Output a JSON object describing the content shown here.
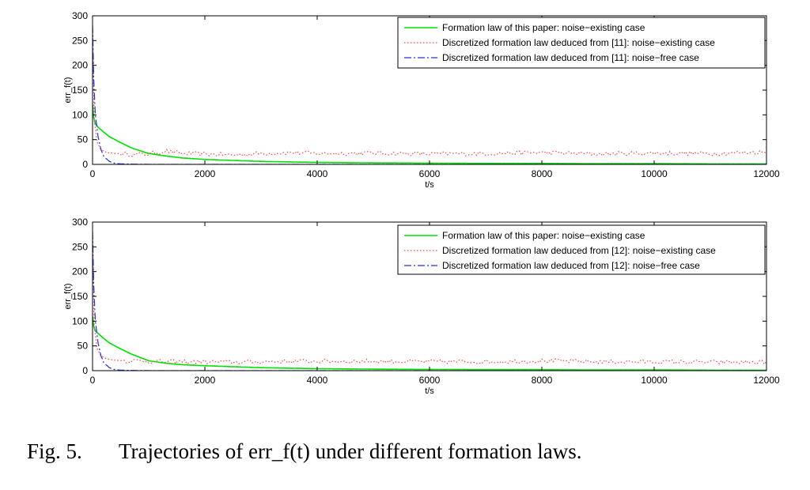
{
  "caption": {
    "number": "Fig. 5.",
    "text": "Trajectories of err_f(t) under different formation laws."
  },
  "colors": {
    "formation": "#00e000",
    "noise_existing": "#ff4040",
    "noise_free": "#2030e0"
  },
  "chart_data": [
    {
      "type": "line",
      "title": "",
      "xlabel": "t/s",
      "ylabel": "err_f(t)",
      "xlim": [
        0,
        12000
      ],
      "ylim": [
        0,
        300
      ],
      "xticks": [
        0,
        2000,
        4000,
        6000,
        8000,
        10000,
        12000
      ],
      "yticks": [
        0,
        50,
        100,
        150,
        200,
        250,
        300
      ],
      "legend_position": "top-right",
      "series": [
        {
          "name": "Formation law of this paper: noise−existing case",
          "style": "solid",
          "x": [
            0,
            20,
            50,
            100,
            200,
            300,
            500,
            700,
            1000,
            1300,
            1600,
            2000,
            2500,
            3000,
            3500,
            4000,
            5000,
            6000,
            7000,
            8000,
            9000,
            10000,
            11000,
            12000
          ],
          "y": [
            120,
            95,
            82,
            75,
            65,
            56,
            44,
            33,
            22,
            17,
            13,
            10,
            8,
            6,
            5,
            4,
            3,
            2.5,
            2,
            2,
            1.5,
            1.5,
            1,
            1
          ]
        },
        {
          "name": "Discretized formation law deduced from [11]: noise−existing case",
          "style": "dotted",
          "noisy": true,
          "x": [
            0,
            30,
            80,
            150,
            250,
            400,
            600,
            800,
            1000,
            1300,
            1600,
            2000,
            2500,
            3000,
            3500,
            4000,
            5000,
            6000,
            7000,
            8000,
            9000,
            10000,
            11000,
            12000
          ],
          "y": [
            280,
            90,
            45,
            30,
            24,
            22,
            21,
            20,
            21,
            27,
            22,
            21,
            19,
            22,
            24,
            22,
            23,
            21,
            22,
            24,
            21,
            23,
            22,
            25
          ]
        },
        {
          "name": "Discretized formation law deduced from [11]: noise−free case",
          "style": "dashdot",
          "x": [
            0,
            20,
            50,
            100,
            150,
            200,
            300,
            400,
            500,
            700,
            1000,
            2000,
            4000,
            6000,
            8000,
            10000,
            12000
          ],
          "y": [
            280,
            175,
            100,
            55,
            30,
            16,
            6,
            2,
            1,
            0.5,
            0,
            0,
            0,
            0,
            0,
            0,
            0
          ]
        }
      ]
    },
    {
      "type": "line",
      "title": "",
      "xlabel": "t/s",
      "ylabel": "err_f(t)",
      "xlim": [
        0,
        12000
      ],
      "ylim": [
        0,
        300
      ],
      "xticks": [
        0,
        2000,
        4000,
        6000,
        8000,
        10000,
        12000
      ],
      "yticks": [
        0,
        50,
        100,
        150,
        200,
        250,
        300
      ],
      "legend_position": "top-right",
      "series": [
        {
          "name": "Formation law of this paper: noise−existing case",
          "style": "solid",
          "x": [
            0,
            20,
            50,
            100,
            200,
            300,
            500,
            700,
            1000,
            1300,
            1600,
            2000,
            2500,
            3000,
            3500,
            4000,
            5000,
            6000,
            7000,
            8000,
            9000,
            10000,
            11000,
            12000
          ],
          "y": [
            110,
            90,
            80,
            75,
            65,
            56,
            44,
            33,
            20,
            15,
            12,
            10,
            8,
            6,
            5,
            4,
            3,
            2.5,
            2,
            2,
            1.5,
            1.5,
            1,
            1
          ]
        },
        {
          "name": "Discretized formation law deduced from [12]: noise−existing case",
          "style": "dotted",
          "noisy": true,
          "x": [
            0,
            30,
            80,
            150,
            250,
            400,
            600,
            800,
            1000,
            1300,
            1600,
            2000,
            2500,
            3000,
            3500,
            4000,
            5000,
            6000,
            7000,
            8000,
            9000,
            10000,
            11000,
            12000
          ],
          "y": [
            280,
            90,
            45,
            30,
            24,
            21,
            20,
            20,
            19,
            18,
            18,
            18,
            17,
            18,
            19,
            19,
            19,
            18,
            18,
            20,
            18,
            18,
            17,
            17
          ]
        },
        {
          "name": "Discretized formation law deduced from [12]: noise−free case",
          "style": "dashdot",
          "x": [
            0,
            20,
            50,
            100,
            150,
            200,
            300,
            400,
            500,
            700,
            1000,
            2000,
            4000,
            6000,
            8000,
            10000,
            12000
          ],
          "y": [
            280,
            175,
            100,
            55,
            30,
            16,
            6,
            2,
            1,
            0.5,
            0,
            0,
            0,
            0,
            0,
            0,
            0
          ]
        }
      ]
    }
  ]
}
